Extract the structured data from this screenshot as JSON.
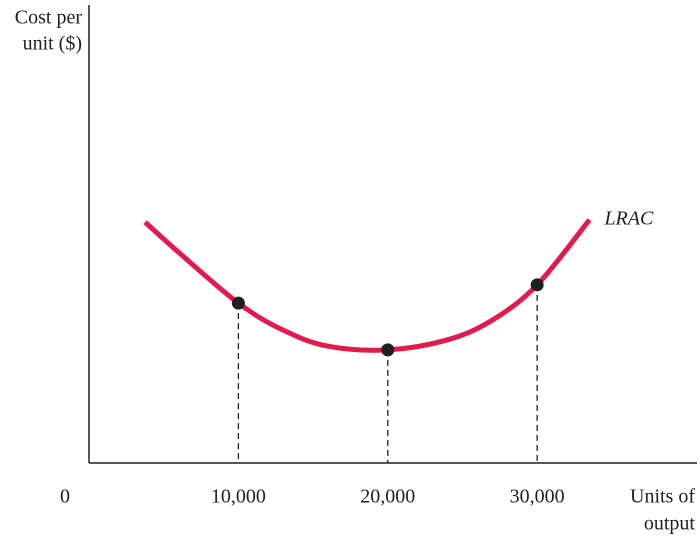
{
  "chart_data": {
    "type": "line",
    "y_label": [
      "Cost per",
      "unit ($)"
    ],
    "x_label": [
      "Units of",
      "output"
    ],
    "annotation": "LRAC",
    "xlim": [
      0,
      40700
    ],
    "ylim": [
      0,
      100
    ],
    "xticks": [
      0,
      {
        "value": 10000,
        "label": "10,000"
      },
      {
        "value": 20000,
        "label": "20,000"
      },
      {
        "value": 30000,
        "label": "30,000"
      }
    ],
    "series": [
      {
        "color": "#e31b4c",
        "x": [
          3750,
          6000,
          10000,
          13000,
          16000,
          20000,
          24000,
          27000,
          30000,
          33500
        ],
        "values": [
          52.6,
          46,
          34.9,
          29,
          25.5,
          24.7,
          26.9,
          31.2,
          38.9,
          53.1
        ]
      },
      {
        "color": "#231f20",
        "x": [
          10000,
          20000,
          30000
        ],
        "values": [
          34.9,
          24.7,
          38.9
        ]
      }
    ]
  }
}
